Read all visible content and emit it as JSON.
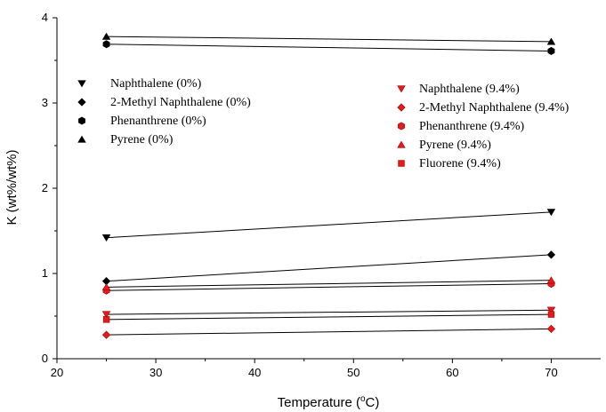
{
  "chart_data": {
    "type": "line",
    "title": "",
    "xlabel": "Temperature (oC)",
    "xlabel_parts": {
      "pre": "Temperature (",
      "sup": "o",
      "post": "C)"
    },
    "ylabel": "K (wt%/wt%)",
    "xlim": [
      20,
      75
    ],
    "ylim": [
      0,
      4
    ],
    "xticks": [
      20,
      30,
      40,
      50,
      60,
      70
    ],
    "yticks": [
      0,
      1,
      2,
      3,
      4
    ],
    "grid": false,
    "series": [
      {
        "name": "Naphthalene (0%)",
        "marker": "triangle-down",
        "color": "#000000",
        "x": [
          25,
          70
        ],
        "y": [
          1.42,
          1.72
        ]
      },
      {
        "name": "2-Methyl Naphthalene (0%)",
        "marker": "diamond",
        "color": "#000000",
        "x": [
          25,
          70
        ],
        "y": [
          0.91,
          1.22
        ]
      },
      {
        "name": "Phenanthrene (0%)",
        "marker": "hexagon",
        "color": "#000000",
        "x": [
          25,
          70
        ],
        "y": [
          3.69,
          3.61
        ]
      },
      {
        "name": "Pyrene (0%)",
        "marker": "triangle-up",
        "color": "#000000",
        "x": [
          25,
          70
        ],
        "y": [
          3.78,
          3.72
        ]
      },
      {
        "name": "Naphthalene (9.4%)",
        "marker": "triangle-down",
        "color": "#e41a1c",
        "x": [
          25,
          70
        ],
        "y": [
          0.52,
          0.57
        ]
      },
      {
        "name": "2-Methyl Naphthalene (9.4%)",
        "marker": "diamond",
        "color": "#e41a1c",
        "x": [
          25,
          70
        ],
        "y": [
          0.28,
          0.35
        ]
      },
      {
        "name": "Phenanthrene (9.4%)",
        "marker": "hexagon",
        "color": "#e41a1c",
        "x": [
          25,
          70
        ],
        "y": [
          0.8,
          0.88
        ]
      },
      {
        "name": "Pyrene (9.4%)",
        "marker": "triangle-up",
        "color": "#e41a1c",
        "x": [
          25,
          70
        ],
        "y": [
          0.84,
          0.92
        ]
      },
      {
        "name": "Fluorene (9.4%)",
        "marker": "square",
        "color": "#e41a1c",
        "x": [
          25,
          70
        ],
        "y": [
          0.46,
          0.52
        ]
      }
    ]
  }
}
